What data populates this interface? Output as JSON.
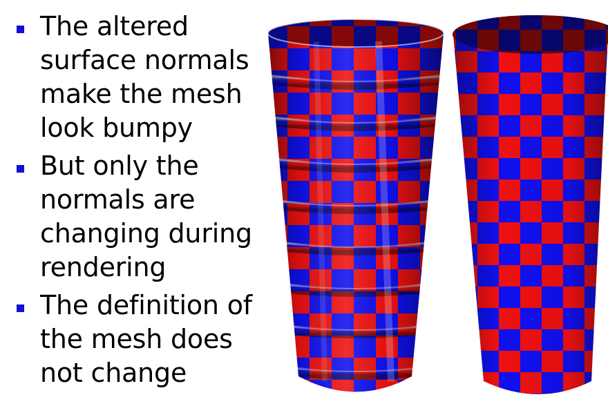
{
  "slide": {
    "bullets": [
      {
        "line1": "The altered",
        "line2": "surface normals",
        "line3": "make the mesh",
        "line4": "look bumpy"
      },
      {
        "line1": "But only the",
        "line2": "normals are",
        "line3": "changing during",
        "line4": "rendering"
      },
      {
        "line1": "The definition of",
        "line2": "the mesh does",
        "line3": "not change"
      }
    ],
    "bullet_color": "#1010d8"
  },
  "figure": {
    "checker_colors": [
      "#ee1111",
      "#1010ee"
    ],
    "left_cylinder": "bump-mapped",
    "right_cylinder": "plain"
  }
}
